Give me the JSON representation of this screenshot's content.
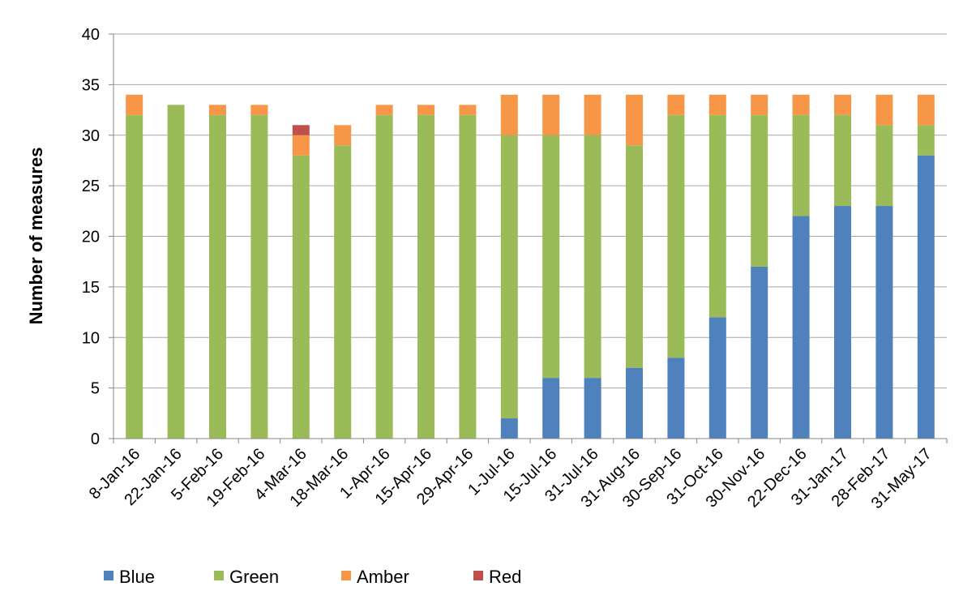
{
  "chart_data": {
    "type": "bar",
    "stacked": true,
    "categories": [
      "8-Jan-16",
      "22-Jan-16",
      "5-Feb-16",
      "19-Feb-16",
      "4-Mar-16",
      "18-Mar-16",
      "1-Apr-16",
      "15-Apr-16",
      "29-Apr-16",
      "1-Jul-16",
      "15-Jul-16",
      "31-Jul-16",
      "31-Aug-16",
      "30-Sep-16",
      "31-Oct-16",
      "30-Nov-16",
      "22-Dec-16",
      "31-Jan-17",
      "28-Feb-17",
      "31-May-17"
    ],
    "series": [
      {
        "name": "Blue",
        "color": "#4f81bd",
        "values": [
          0,
          0,
          0,
          0,
          0,
          0,
          0,
          0,
          0,
          2,
          6,
          6,
          7,
          8,
          12,
          17,
          22,
          23,
          23,
          28
        ]
      },
      {
        "name": "Green",
        "color": "#9bbb59",
        "values": [
          32,
          33,
          32,
          32,
          28,
          29,
          32,
          32,
          32,
          28,
          24,
          24,
          22,
          24,
          20,
          15,
          10,
          9,
          8,
          3
        ]
      },
      {
        "name": "Amber",
        "color": "#f79646",
        "values": [
          2,
          0,
          1,
          1,
          2,
          2,
          1,
          1,
          1,
          4,
          4,
          4,
          5,
          2,
          2,
          2,
          2,
          2,
          3,
          3
        ]
      },
      {
        "name": "Red",
        "color": "#c0504d",
        "values": [
          0,
          0,
          0,
          0,
          1,
          0,
          0,
          0,
          0,
          0,
          0,
          0,
          0,
          0,
          0,
          0,
          0,
          0,
          0,
          0
        ]
      }
    ],
    "title": "",
    "xlabel": "",
    "ylabel": "Number of measures",
    "ylim": [
      0,
      40
    ],
    "yticks": [
      0,
      5,
      10,
      15,
      20,
      25,
      30,
      35,
      40
    ],
    "grid": true,
    "legend_position": "bottom"
  }
}
